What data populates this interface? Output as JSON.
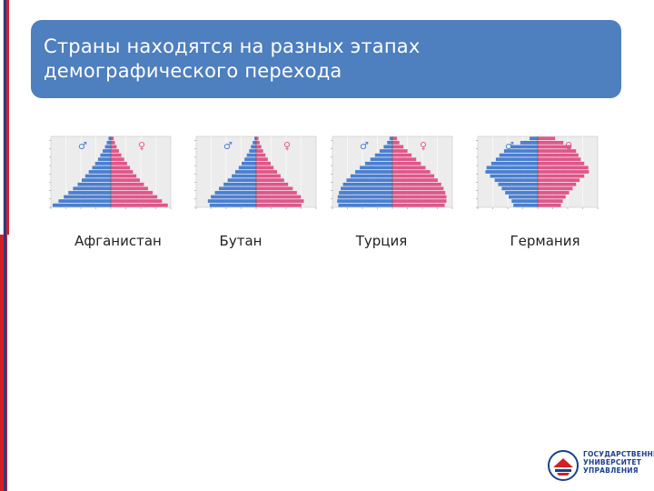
{
  "slide": {
    "title_lines": [
      "Страны находятся на разных этапах",
      "демографического перехода"
    ]
  },
  "colors": {
    "title_bg": "#4e7fbe",
    "male": "#4a7fd0",
    "female": "#e0568a",
    "chart_bg": "#ececec",
    "accent_red": "#d41f26",
    "accent_blue": "#1d3f8c"
  },
  "pyramids": [
    {
      "country": "Афганистан",
      "shape": "expansive",
      "male": [
        1.0,
        0.9,
        0.81,
        0.73,
        0.65,
        0.57,
        0.5,
        0.44,
        0.38,
        0.32,
        0.27,
        0.22,
        0.18,
        0.14,
        0.1,
        0.07,
        0.04
      ],
      "female": [
        0.98,
        0.88,
        0.8,
        0.72,
        0.64,
        0.57,
        0.5,
        0.44,
        0.38,
        0.33,
        0.28,
        0.23,
        0.18,
        0.14,
        0.1,
        0.07,
        0.05
      ]
    },
    {
      "country": "Бутан",
      "shape": "expansive",
      "male": [
        0.8,
        0.83,
        0.78,
        0.71,
        0.64,
        0.56,
        0.49,
        0.42,
        0.36,
        0.3,
        0.25,
        0.2,
        0.16,
        0.12,
        0.09,
        0.06,
        0.03
      ],
      "female": [
        0.78,
        0.82,
        0.77,
        0.7,
        0.63,
        0.55,
        0.48,
        0.42,
        0.36,
        0.3,
        0.25,
        0.2,
        0.16,
        0.12,
        0.09,
        0.06,
        0.04
      ]
    },
    {
      "country": "Турция",
      "shape": "stationary",
      "male": [
        0.93,
        0.95,
        0.94,
        0.92,
        0.89,
        0.85,
        0.79,
        0.72,
        0.64,
        0.56,
        0.47,
        0.38,
        0.3,
        0.22,
        0.15,
        0.09,
        0.05
      ],
      "female": [
        0.9,
        0.93,
        0.93,
        0.91,
        0.88,
        0.84,
        0.78,
        0.72,
        0.65,
        0.57,
        0.49,
        0.41,
        0.33,
        0.26,
        0.19,
        0.12,
        0.08
      ]
    },
    {
      "country": "Германия",
      "shape": "constrictive",
      "male": [
        0.42,
        0.45,
        0.5,
        0.56,
        0.62,
        0.68,
        0.74,
        0.82,
        0.9,
        0.88,
        0.8,
        0.72,
        0.66,
        0.58,
        0.46,
        0.3,
        0.14
      ],
      "female": [
        0.4,
        0.43,
        0.48,
        0.54,
        0.6,
        0.66,
        0.72,
        0.8,
        0.88,
        0.87,
        0.8,
        0.74,
        0.7,
        0.66,
        0.58,
        0.44,
        0.3
      ]
    }
  ]
}
